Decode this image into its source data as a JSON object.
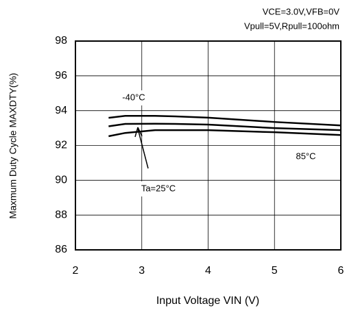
{
  "chart_data": {
    "type": "line",
    "subtitle": [
      "VCE=3.0V,VFB=0V",
      "Vpull=5V,Rpull=100ohm"
    ],
    "xlabel": "Input Voltage  VIN  (V)",
    "ylabel": "Maxmum Duty Cycle  MAXDTY(%)",
    "x": [
      2.5,
      2.75,
      3.2,
      3.5,
      4,
      5,
      6
    ],
    "series": [
      {
        "name": "-40°C",
        "color": "#000000",
        "values": [
          93.59,
          93.7,
          93.7,
          93.67,
          93.6,
          93.35,
          93.15
        ]
      },
      {
        "name": "Ta=25°C",
        "color": "#000000",
        "values": [
          93.1,
          93.24,
          93.25,
          93.24,
          93.2,
          93.0,
          92.88
        ]
      },
      {
        "name": "85°C",
        "color": "#000000",
        "values": [
          92.53,
          92.72,
          92.88,
          92.88,
          92.88,
          92.76,
          92.6
        ]
      }
    ],
    "xlim": [
      2,
      6
    ],
    "xticks": [
      2,
      3,
      4,
      5,
      6
    ],
    "ylim": [
      86,
      98
    ],
    "yticks": [
      86,
      88,
      90,
      92,
      94,
      96,
      98
    ],
    "grid": true
  }
}
